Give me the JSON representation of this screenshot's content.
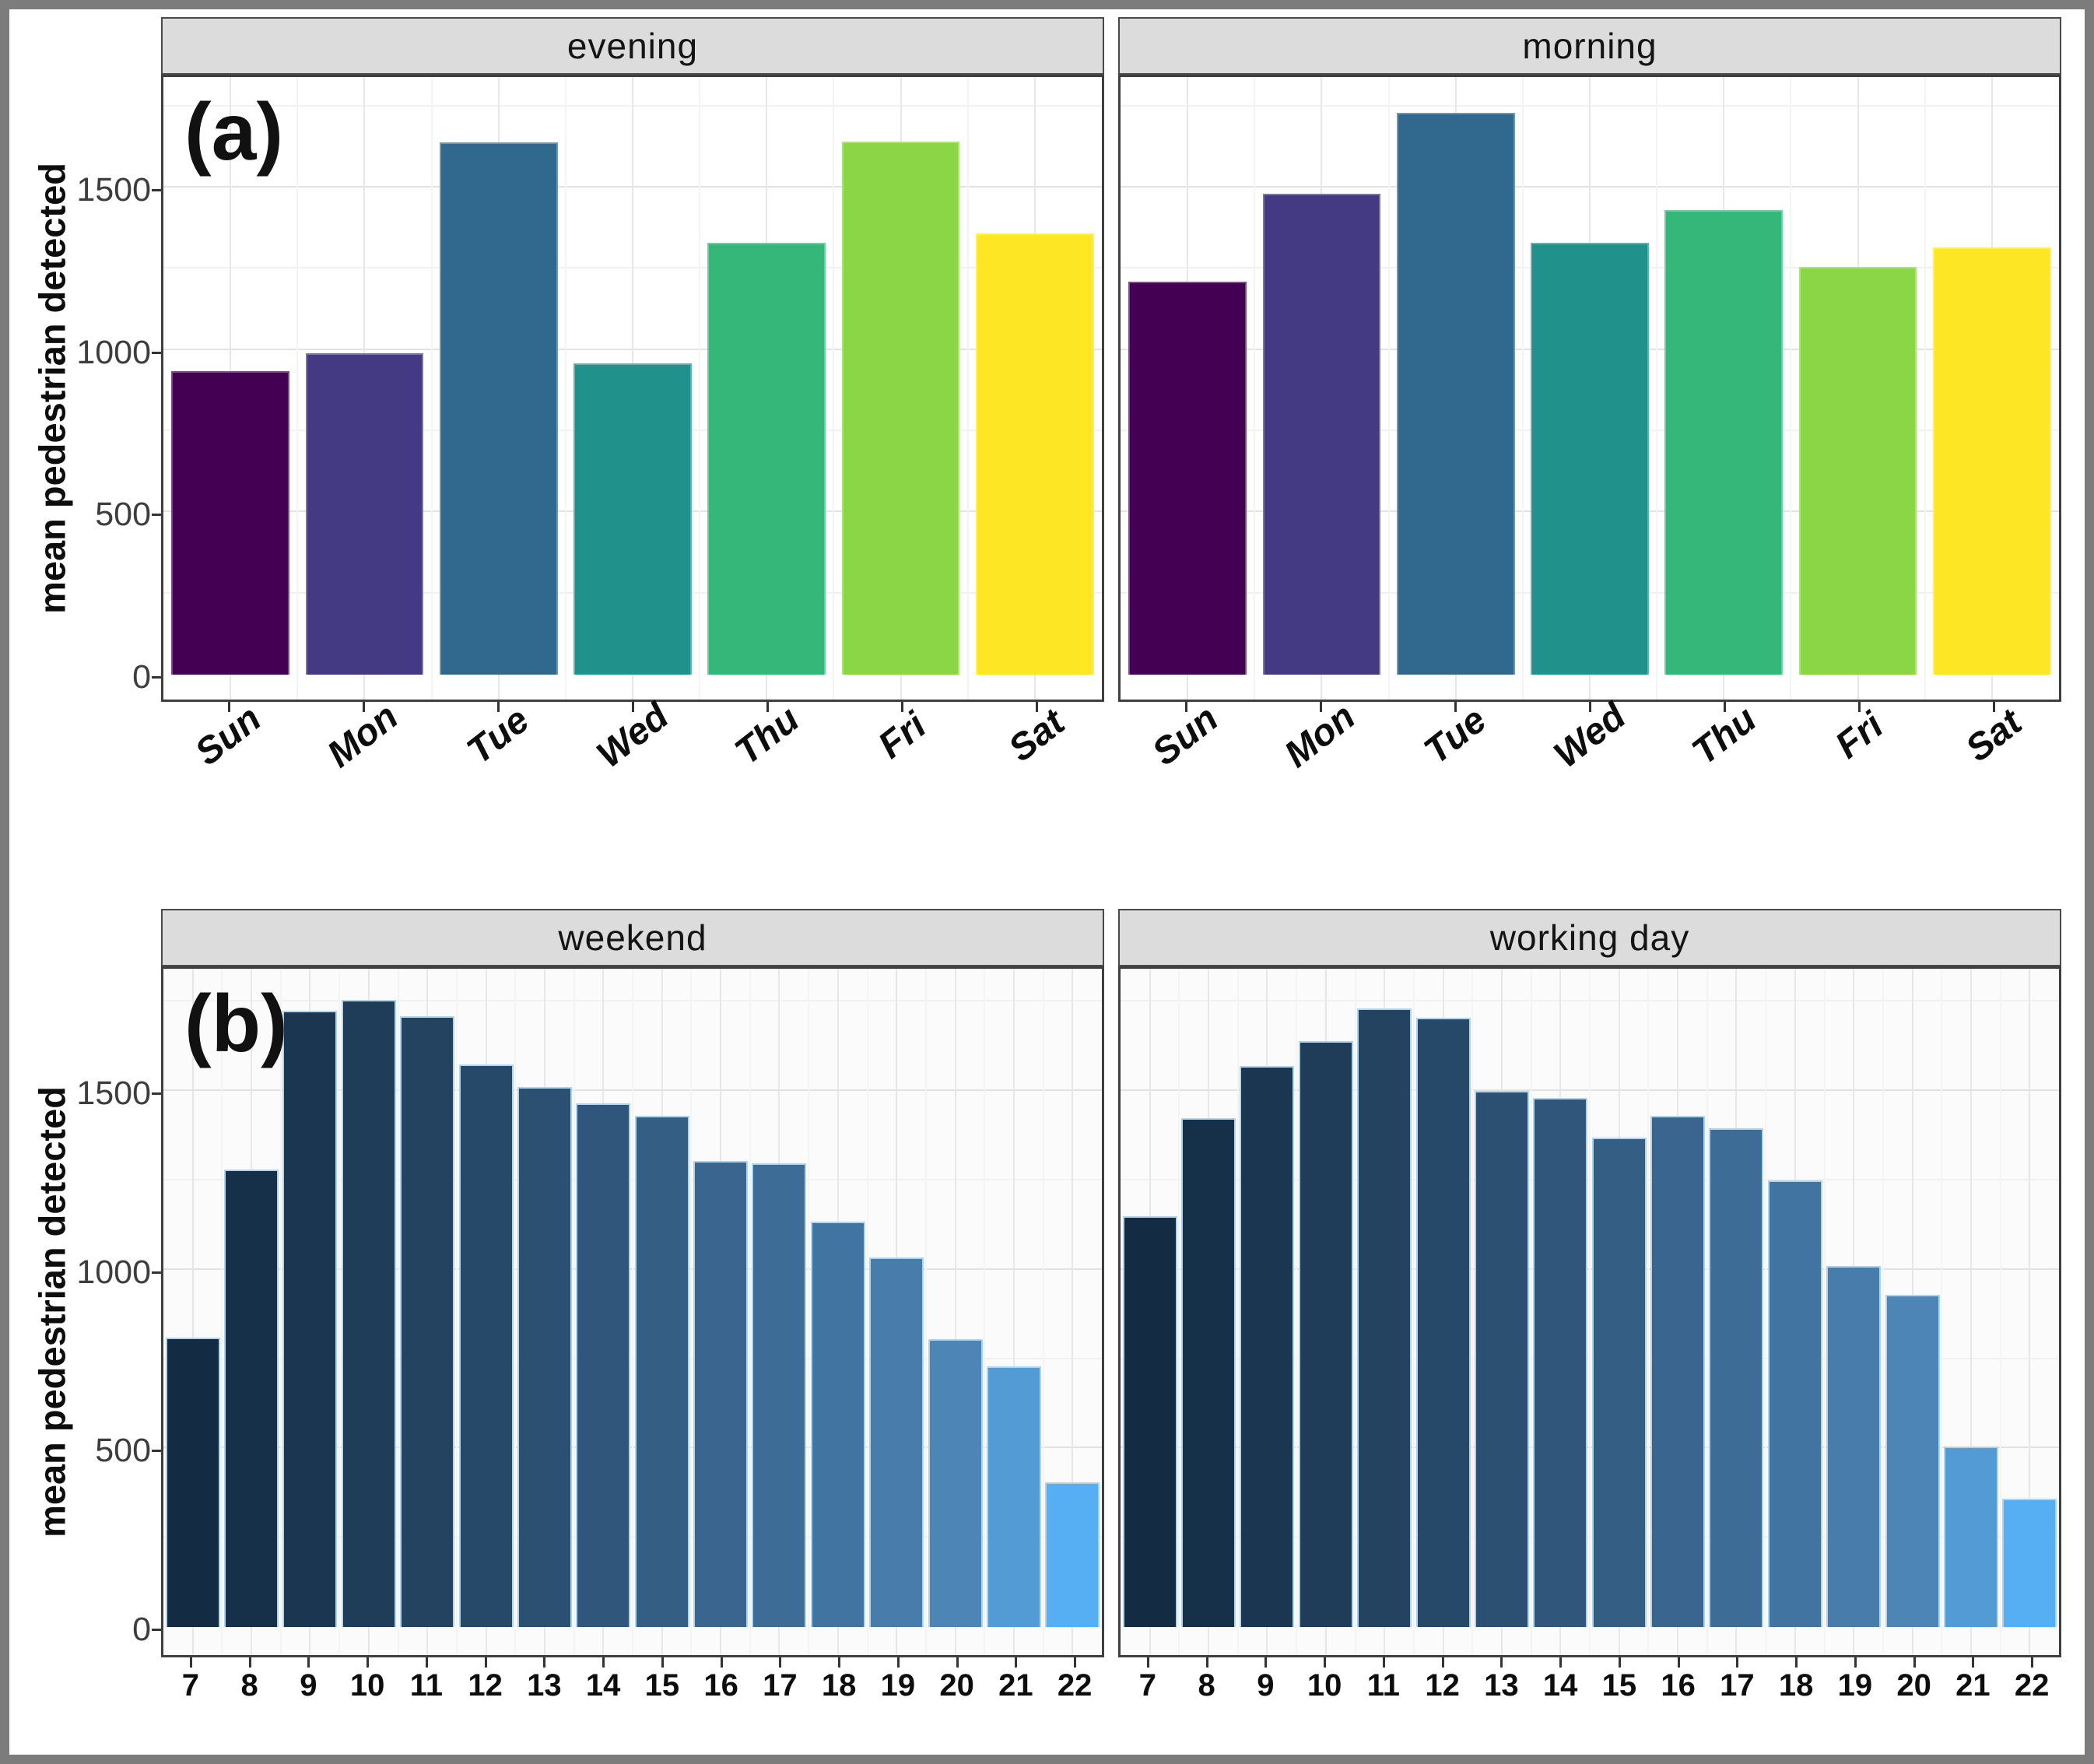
{
  "page": {
    "background": "#FFFFFF",
    "outer_border_color": "#7C7C7C",
    "strip_bg": "#DCDCDC",
    "panel_border": "#3F3F3F",
    "grid_major": "#E2E2E2",
    "grid_minor": "#F1F1F1",
    "axis_text_color": "#3D3D3D"
  },
  "chart_data": [
    {
      "type": "bar",
      "panel_label": "(a)",
      "ylabel": "mean pedestrian detected",
      "y_ticks": [
        "0",
        "500",
        "1000",
        "1500"
      ],
      "y_tick_values": [
        0,
        500,
        1000,
        1500
      ],
      "ylim": [
        0,
        1855
      ],
      "grid": "on",
      "legend_position": "none",
      "categories": [
        "Sun",
        "Mon",
        "Tue",
        "Wed",
        "Thu",
        "Fri",
        "Sat"
      ],
      "bar_colors": [
        "#440154",
        "#443983",
        "#31688E",
        "#21918C",
        "#35B779",
        "#8BD646",
        "#FDE725"
      ],
      "bar_edge": "rgba(255,255,255,0.30)",
      "facets": [
        {
          "title": "evening",
          "values": [
            935,
            990,
            1640,
            958,
            1330,
            1642,
            1358
          ]
        },
        {
          "title": "morning",
          "values": [
            1210,
            1480,
            1730,
            1330,
            1430,
            1255,
            1315
          ]
        }
      ]
    },
    {
      "type": "bar",
      "panel_label": "(b)",
      "ylabel": "mean pedestrian detected",
      "y_ticks": [
        "0",
        "500",
        "1000",
        "1500"
      ],
      "y_tick_values": [
        0,
        500,
        1000,
        1500
      ],
      "ylim": [
        0,
        1855
      ],
      "grid": "on",
      "legend_position": "none",
      "categories": [
        "7",
        "8",
        "9",
        "10",
        "11",
        "12",
        "13",
        "14",
        "15",
        "16",
        "17",
        "18",
        "19",
        "20",
        "21",
        "22"
      ],
      "bar_colors": [
        "#132B43",
        "#17304A",
        "#1B3651",
        "#1F3C59",
        "#234361",
        "#274969",
        "#2B5072",
        "#30577B",
        "#345E84",
        "#39658E",
        "#3D6D97",
        "#4274A1",
        "#477CAB",
        "#4C85B6",
        "#529BD5",
        "#56AEF3"
      ],
      "bar_edge": "#AED5F0",
      "facets": [
        {
          "title": "weekend",
          "values": [
            810,
            1280,
            1725,
            1755,
            1710,
            1575,
            1510,
            1465,
            1430,
            1305,
            1298,
            1135,
            1035,
            805,
            730,
            405
          ]
        },
        {
          "title": "working day",
          "values": [
            1150,
            1425,
            1570,
            1640,
            1730,
            1705,
            1500,
            1480,
            1370,
            1430,
            1395,
            1250,
            1010,
            930,
            505,
            360
          ]
        }
      ]
    }
  ]
}
